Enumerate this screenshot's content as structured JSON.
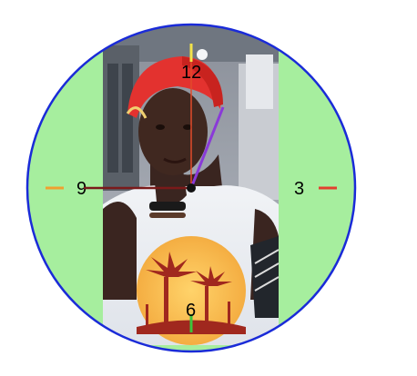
{
  "clock": {
    "numbers": {
      "twelve": "12",
      "three": "3",
      "six": "6",
      "nine": "9"
    },
    "colors": {
      "face_fill": "#a6ee9e",
      "rim": "#1a2bd8",
      "marker_12": "#f2e24a",
      "marker_3": "#e2402e",
      "marker_6": "#3cc43c",
      "marker_9": "#f0a030",
      "hour_hand": "#7a1a1a",
      "minute_hand": "#e24a2a",
      "second_hand": "#8a3ad8",
      "hub": "#111111"
    },
    "time_shown": {
      "hour": 9,
      "minute": 0,
      "second": 5
    },
    "photo": {
      "subject": "selfie-portrait"
    }
  }
}
